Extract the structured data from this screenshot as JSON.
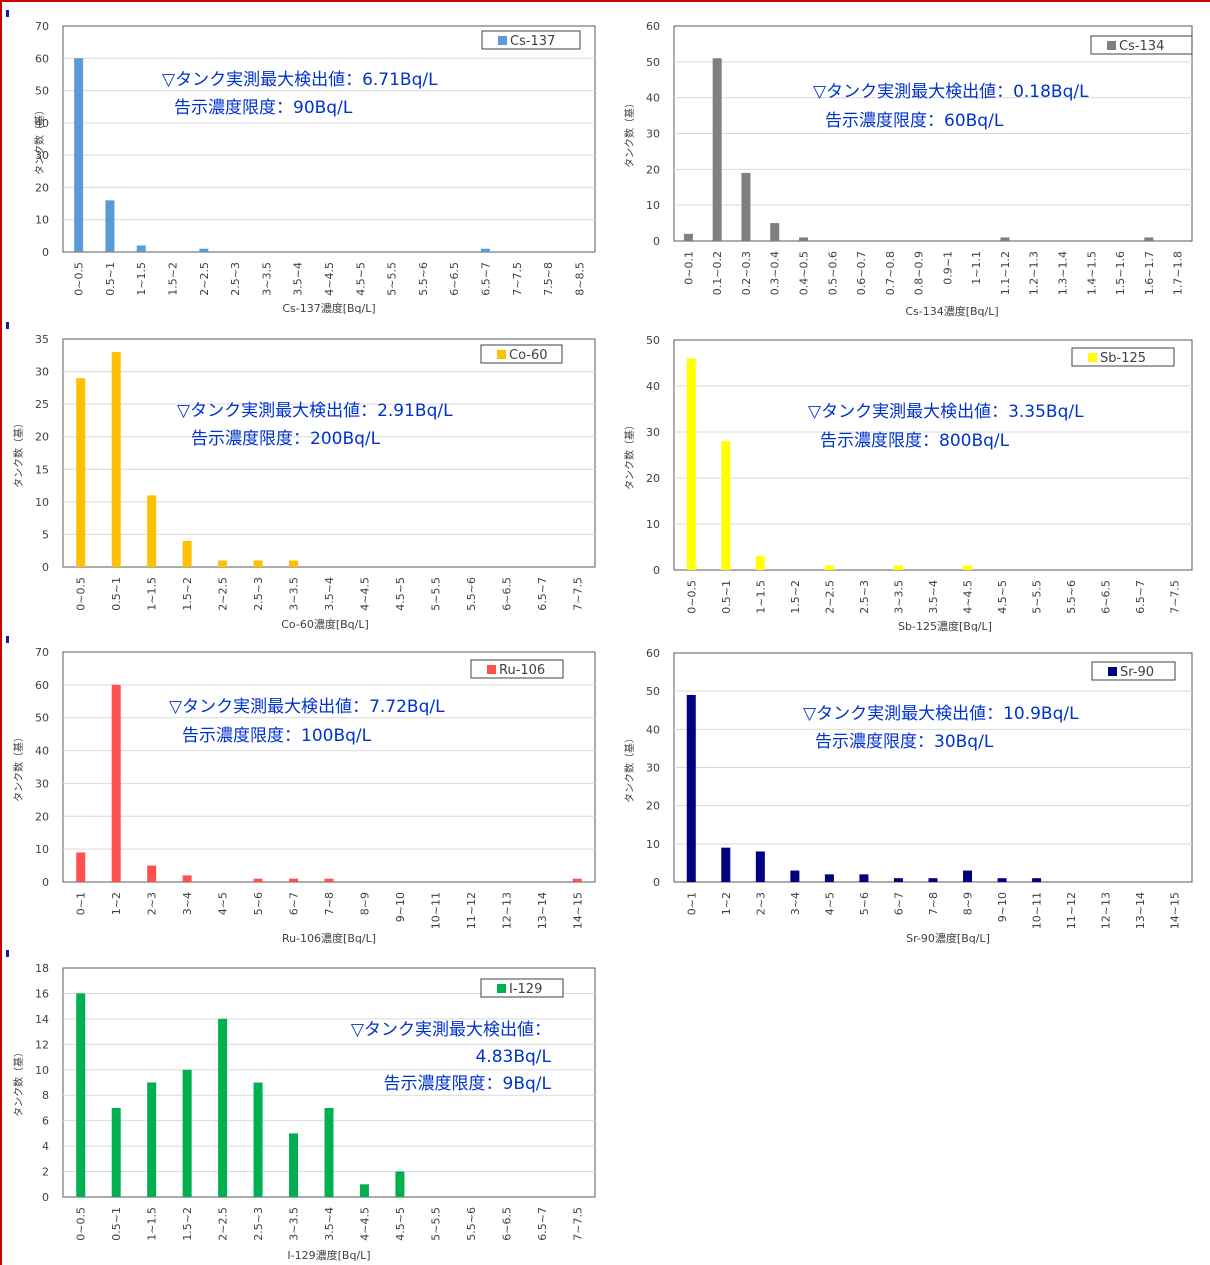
{
  "page": {
    "ylabel": "タンク数（基）"
  },
  "chart_data": [
    {
      "type": "bar",
      "legend": "Cs-137",
      "color": "#5b9bd5",
      "xlabel": "Cs-137濃度[Bq/L]",
      "ylabel": "タンク数（基）",
      "ylim": [
        0,
        70
      ],
      "yticks": [
        0,
        10,
        20,
        30,
        40,
        50,
        60,
        70
      ],
      "categories": [
        "0~0.5",
        "0.5~1",
        "1~1.5",
        "1.5~2",
        "2~2.5",
        "2.5~3",
        "3~3.5",
        "3.5~4",
        "4~4.5",
        "4.5~5",
        "5~5.5",
        "5.5~6",
        "6~6.5",
        "6.5~7",
        "7~7.5",
        "7.5~8",
        "8~8.5"
      ],
      "values": [
        60,
        16,
        2,
        0,
        1,
        0,
        0,
        0,
        0,
        0,
        0,
        0,
        0,
        1,
        0,
        0,
        0
      ],
      "annotation": [
        "▽タンク実測最大検出値：6.71Bq/L",
        "告示濃度限度：90Bq/L"
      ]
    },
    {
      "type": "bar",
      "legend": "Cs-134",
      "color": "#7f7f7f",
      "xlabel": "Cs-134濃度[Bq/L]",
      "ylabel": "タンク数（基）",
      "ylim": [
        0,
        60
      ],
      "yticks": [
        0,
        10,
        20,
        30,
        40,
        50,
        60
      ],
      "categories": [
        "0~0.1",
        "0.1~0.2",
        "0.2~0.3",
        "0.3~0.4",
        "0.4~0.5",
        "0.5~0.6",
        "0.6~0.7",
        "0.7~0.8",
        "0.8~0.9",
        "0.9~1",
        "1~1.1",
        "1.1~1.2",
        "1.2~1.3",
        "1.3~1.4",
        "1.4~1.5",
        "1.5~1.6",
        "1.6~1.7",
        "1.7~1.8"
      ],
      "values": [
        2,
        51,
        19,
        5,
        1,
        0,
        0,
        0,
        0,
        0,
        0,
        1,
        0,
        0,
        0,
        0,
        1,
        0
      ],
      "annotation": [
        "▽タンク実測最大検出値：0.18Bq/L",
        "告示濃度限度：60Bq/L"
      ]
    },
    {
      "type": "bar",
      "legend": "Co-60",
      "color": "#ffc000",
      "xlabel": "Co-60濃度[Bq/L]",
      "ylabel": "タンク数（基）",
      "ylim": [
        0,
        35
      ],
      "yticks": [
        0,
        5,
        10,
        15,
        20,
        25,
        30,
        35
      ],
      "categories": [
        "0~0.5",
        "0.5~1",
        "1~1.5",
        "1.5~2",
        "2~2.5",
        "2.5~3",
        "3~3.5",
        "3.5~4",
        "4~4.5",
        "4.5~5",
        "5~5.5",
        "5.5~6",
        "6~6.5",
        "6.5~7",
        "7~7.5"
      ],
      "values": [
        29,
        33,
        11,
        4,
        1,
        1,
        1,
        0,
        0,
        0,
        0,
        0,
        0,
        0,
        0
      ],
      "annotation": [
        "▽タンク実測最大検出値：2.91Bq/L",
        "告示濃度限度：200Bq/L"
      ]
    },
    {
      "type": "bar",
      "legend": "Sb-125",
      "color": "#ffff00",
      "xlabel": "Sb-125濃度[Bq/L]",
      "ylabel": "タンク数（基）",
      "ylim": [
        0,
        50
      ],
      "yticks": [
        0,
        10,
        20,
        30,
        40,
        50
      ],
      "categories": [
        "0~0.5",
        "0.5~1",
        "1~1.5",
        "1.5~2",
        "2~2.5",
        "2.5~3",
        "3~3.5",
        "3.5~4",
        "4~4.5",
        "4.5~5",
        "5~5.5",
        "5.5~6",
        "6~6.5",
        "6.5~7",
        "7~7.5"
      ],
      "values": [
        46,
        28,
        3,
        0,
        1,
        0,
        1,
        0,
        1,
        0,
        0,
        0,
        0,
        0,
        0
      ],
      "annotation": [
        "▽タンク実測最大検出値：3.35Bq/L",
        "告示濃度限度：800Bq/L"
      ]
    },
    {
      "type": "bar",
      "legend": "Ru-106",
      "color": "#ff5050",
      "xlabel": "Ru-106濃度[Bq/L]",
      "ylabel": "タンク数（基）",
      "ylim": [
        0,
        70
      ],
      "yticks": [
        0,
        10,
        20,
        30,
        40,
        50,
        60,
        70
      ],
      "categories": [
        "0~1",
        "1~2",
        "2~3",
        "3~4",
        "4~5",
        "5~6",
        "6~7",
        "7~8",
        "8~9",
        "9~10",
        "10~11",
        "11~12",
        "12~13",
        "13~14",
        "14~15"
      ],
      "values": [
        9,
        60,
        5,
        2,
        0,
        1,
        1,
        1,
        0,
        0,
        0,
        0,
        0,
        0,
        1
      ],
      "annotation": [
        "▽タンク実測最大検出値：7.72Bq/L",
        "告示濃度限度：100Bq/L"
      ]
    },
    {
      "type": "bar",
      "legend": "Sr-90",
      "color": "#000080",
      "xlabel": "Sr-90濃度[Bq/L]",
      "ylabel": "タンク数（基）",
      "ylim": [
        0,
        60
      ],
      "yticks": [
        0,
        10,
        20,
        30,
        40,
        50,
        60
      ],
      "categories": [
        "0~1",
        "1~2",
        "2~3",
        "3~4",
        "4~5",
        "5~6",
        "6~7",
        "7~8",
        "8~9",
        "9~10",
        "10~11",
        "11~12",
        "12~13",
        "13~14",
        "14~15"
      ],
      "values": [
        49,
        9,
        8,
        3,
        2,
        2,
        1,
        1,
        3,
        1,
        1,
        0,
        0,
        0,
        0
      ],
      "annotation": [
        "▽タンク実測最大検出値：10.9Bq/L",
        "告示濃度限度：30Bq/L"
      ]
    },
    {
      "type": "bar",
      "legend": "I-129",
      "color": "#00b050",
      "xlabel": "I-129濃度[Bq/L]",
      "ylabel": "タンク数（基）",
      "ylim": [
        0,
        18
      ],
      "yticks": [
        0,
        2,
        4,
        6,
        8,
        10,
        12,
        14,
        16,
        18
      ],
      "categories": [
        "0~0.5",
        "0.5~1",
        "1~1.5",
        "1.5~2",
        "2~2.5",
        "2.5~3",
        "3~3.5",
        "3.5~4",
        "4~4.5",
        "4.5~5",
        "5~5.5",
        "5.5~6",
        "6~6.5",
        "6.5~7",
        "7~7.5"
      ],
      "values": [
        16,
        7,
        9,
        10,
        14,
        9,
        5,
        7,
        1,
        2,
        0,
        0,
        0,
        0,
        0
      ],
      "annotation": [
        "▽タンク実測最大検出値：",
        "4.83Bq/L",
        "告示濃度限度：9Bq/L"
      ]
    }
  ]
}
